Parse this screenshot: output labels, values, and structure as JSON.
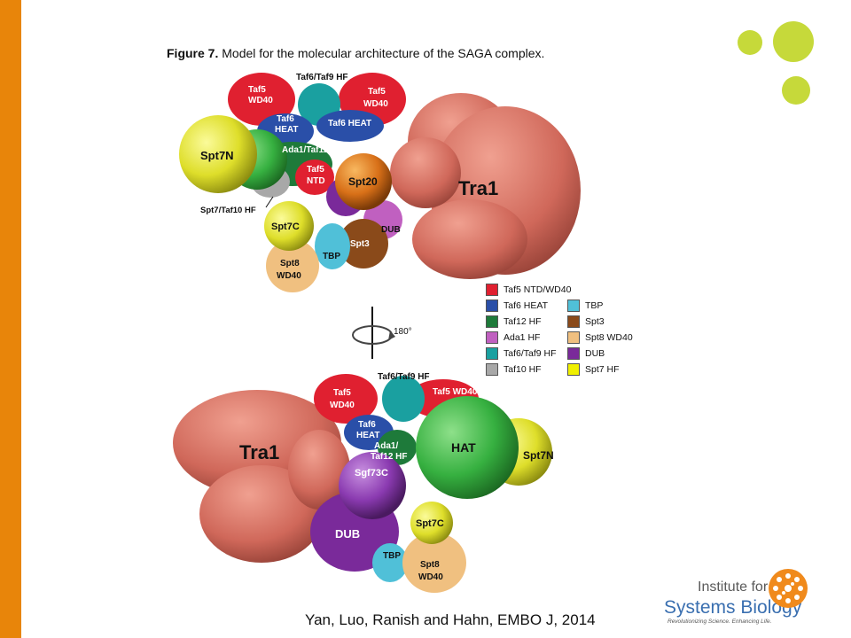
{
  "slide": {
    "accent_color": "#e8850a",
    "dot_color": "#c6d93a"
  },
  "figure": {
    "label": "Figure 7.",
    "title": "Model for the molecular architecture of the SAGA complex.",
    "rotation_label": "180°",
    "top_view": {
      "labels": {
        "taf6_taf9_hf": "Taf6/Taf9 HF",
        "taf5_wd40_left": [
          "Taf5",
          "WD40"
        ],
        "taf5_wd40_right": [
          "Taf5",
          "WD40"
        ],
        "taf6_heat_left": [
          "Taf6",
          "HEAT"
        ],
        "taf6_heat_right": "Taf6 HEAT",
        "spt7n": "Spt7N",
        "ada1_taf12_hf": "Ada1/Taf12 HF",
        "taf5_ntd": [
          "Taf5",
          "NTD"
        ],
        "spt20": "Spt20",
        "tra1": "Tra1",
        "spt7_taf10_hf": "Spt7/Taf10 HF",
        "spt7c": "Spt7C",
        "dub": "DUB",
        "spt3": "Spt3",
        "tbp": "TBP",
        "spt8_wd40": [
          "Spt8",
          "WD40"
        ]
      }
    },
    "bottom_view": {
      "labels": {
        "taf6_taf9_hf": "Taf6/Taf9 HF",
        "taf5_wd40_left": [
          "Taf5",
          "WD40"
        ],
        "taf5_wd40_right": "Taf5 WD40",
        "tra1": "Tra1",
        "taf6_heat": [
          "Taf6",
          "HEAT"
        ],
        "ada1_taf12_hf": [
          "Ada1/",
          "Taf12 HF"
        ],
        "hat": "HAT",
        "spt7n": "Spt7N",
        "sgf73c": "Sgf73C",
        "dub": "DUB",
        "spt7c": "Spt7C",
        "tbp": "TBP",
        "spt8_wd40": [
          "Spt8",
          "WD40"
        ]
      }
    },
    "legend": [
      {
        "label": "Taf5 NTD/WD40",
        "color": "#e02030"
      },
      {
        "label": "Taf6 HEAT",
        "color": "#2a4fa8"
      },
      {
        "label": "Taf12 HF",
        "color": "#1e7a3a"
      },
      {
        "label": "Ada1 HF",
        "color": "#c060c0"
      },
      {
        "label": "Taf6/Taf9 HF",
        "color": "#1aa0a0"
      },
      {
        "label": "Taf10 HF",
        "color": "#a8a8a8"
      },
      {
        "label": "TBP",
        "color": "#50c0d8"
      },
      {
        "label": "Spt3",
        "color": "#8a4a1a"
      },
      {
        "label": "Spt8 WD40",
        "color": "#f0c080"
      },
      {
        "label": "DUB",
        "color": "#7a2a9a"
      },
      {
        "label": "Spt7 HF",
        "color": "#f0f000"
      }
    ]
  },
  "citation": "Yan, Luo, Ranish and Hahn, EMBO J, 2014",
  "logo": {
    "line1": "Institute for",
    "line2": "Systems Biology",
    "tagline": "Revolutionizing Science. Enhancing Life."
  }
}
